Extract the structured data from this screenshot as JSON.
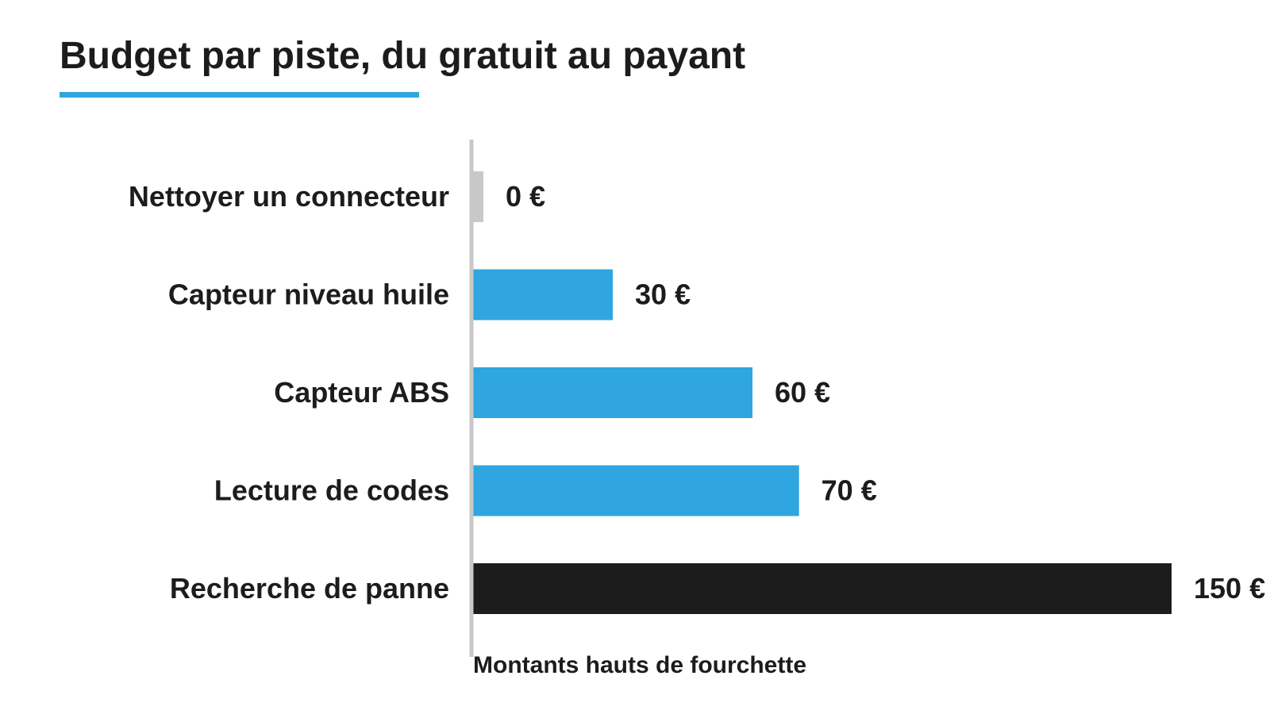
{
  "chart_data": {
    "type": "bar",
    "orientation": "horizontal",
    "title": "Budget par piste, du gratuit au payant",
    "xlabel": "Montants hauts de fourchette",
    "ylabel": "",
    "categories": [
      "Nettoyer un connecteur",
      "Capteur niveau huile",
      "Capteur ABS",
      "Lecture de codes",
      "Recherche de panne"
    ],
    "values": [
      0,
      30,
      60,
      70,
      150
    ],
    "value_labels": [
      "0 €",
      "30 €",
      "60 €",
      "70 €",
      "150 €"
    ],
    "unit": "€",
    "xlim": [
      0,
      150
    ],
    "grid": false,
    "legend": "none",
    "colors": {
      "zero": "#c8c8c8",
      "default": "#2fa6e0",
      "highlight": "#1c1c1c",
      "axis": "#c8c8c8",
      "title_underline": "#2fa6e0"
    },
    "bar_colors": [
      "#c8c8c8",
      "#2fa6e0",
      "#2fa6e0",
      "#2fa6e0",
      "#1c1c1c"
    ]
  }
}
